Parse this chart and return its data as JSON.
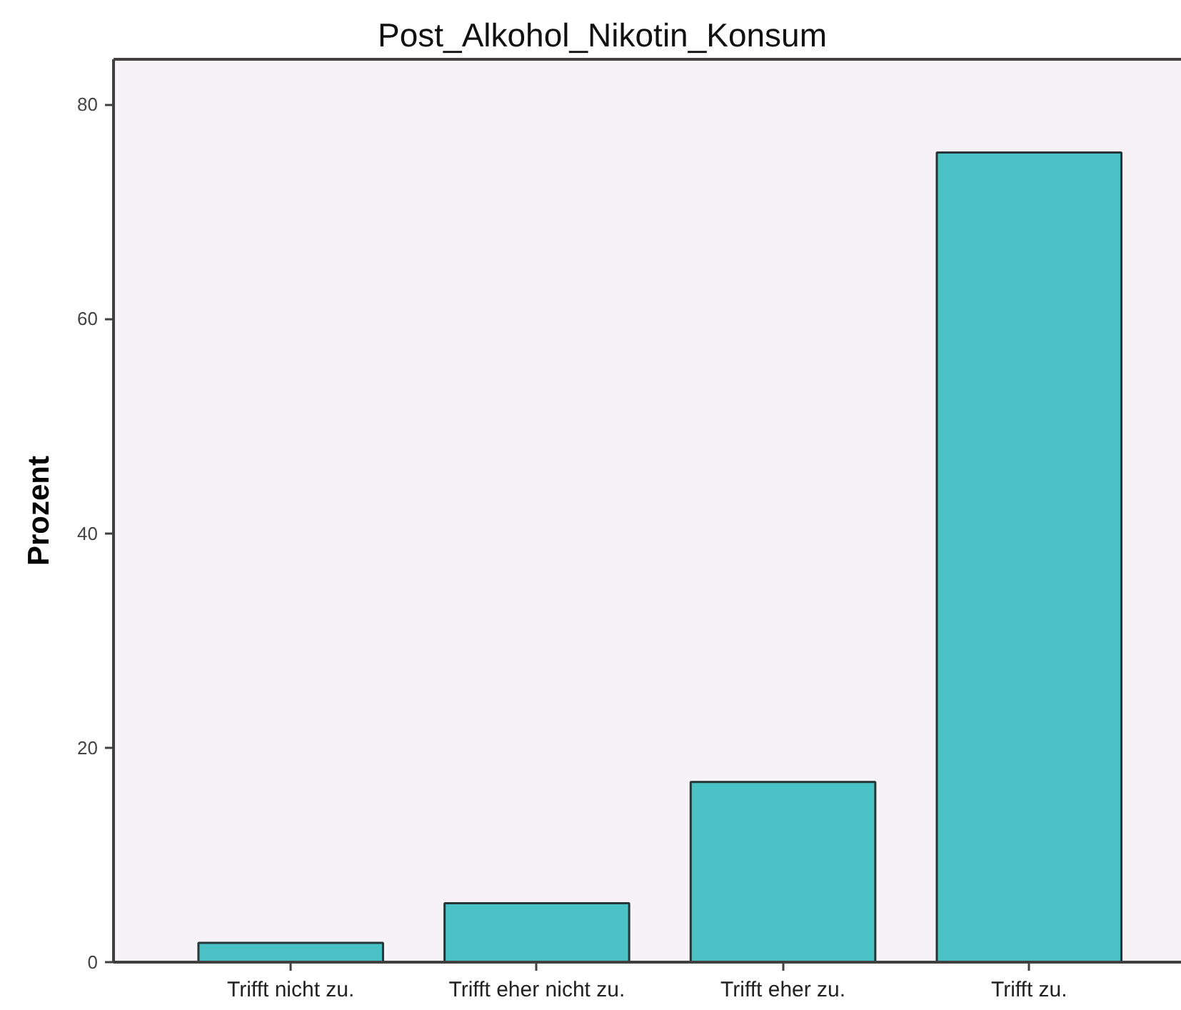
{
  "chart_data": {
    "type": "bar",
    "title": "Post_Alkohol_Nikotin_Konsum",
    "ylabel": "Prozent",
    "categories": [
      "Trifft nicht zu.",
      "Trifft eher nicht zu.",
      "Trifft eher zu.",
      "Trifft zu."
    ],
    "values": [
      1.8,
      5.5,
      16.8,
      75.5
    ],
    "color": "#4bc2c6",
    "ylim": [
      0,
      84.2
    ],
    "yticks": [
      0,
      20,
      40,
      60,
      80
    ],
    "grid": false
  }
}
